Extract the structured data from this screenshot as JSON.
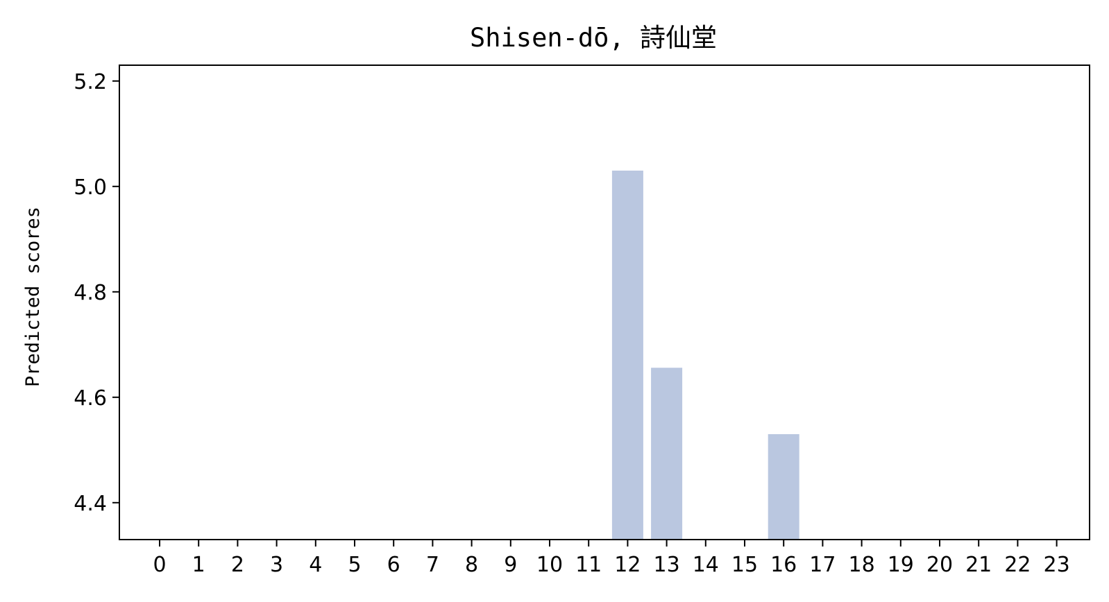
{
  "chart_data": {
    "type": "bar",
    "title": "Shisen-dō, 詩仙堂",
    "xlabel": "",
    "ylabel": "Predicted scores",
    "categories": [
      "0",
      "1",
      "2",
      "3",
      "4",
      "5",
      "6",
      "7",
      "8",
      "9",
      "10",
      "11",
      "12",
      "13",
      "14",
      "15",
      "16",
      "17",
      "18",
      "19",
      "20",
      "21",
      "22",
      "23"
    ],
    "values": [
      null,
      null,
      null,
      null,
      null,
      null,
      null,
      null,
      null,
      null,
      null,
      null,
      5.03,
      4.656,
      null,
      null,
      4.53,
      null,
      null,
      null,
      null,
      null,
      null,
      null
    ],
    "ylim": [
      4.33,
      5.23
    ],
    "yticks": [
      4.4,
      4.6,
      4.8,
      5.0,
      5.2
    ],
    "ytick_labels": [
      "4.4",
      "4.6",
      "4.8",
      "5.0",
      "5.2"
    ],
    "bar_color": "#bac7e0",
    "grid": false,
    "legend": false
  }
}
